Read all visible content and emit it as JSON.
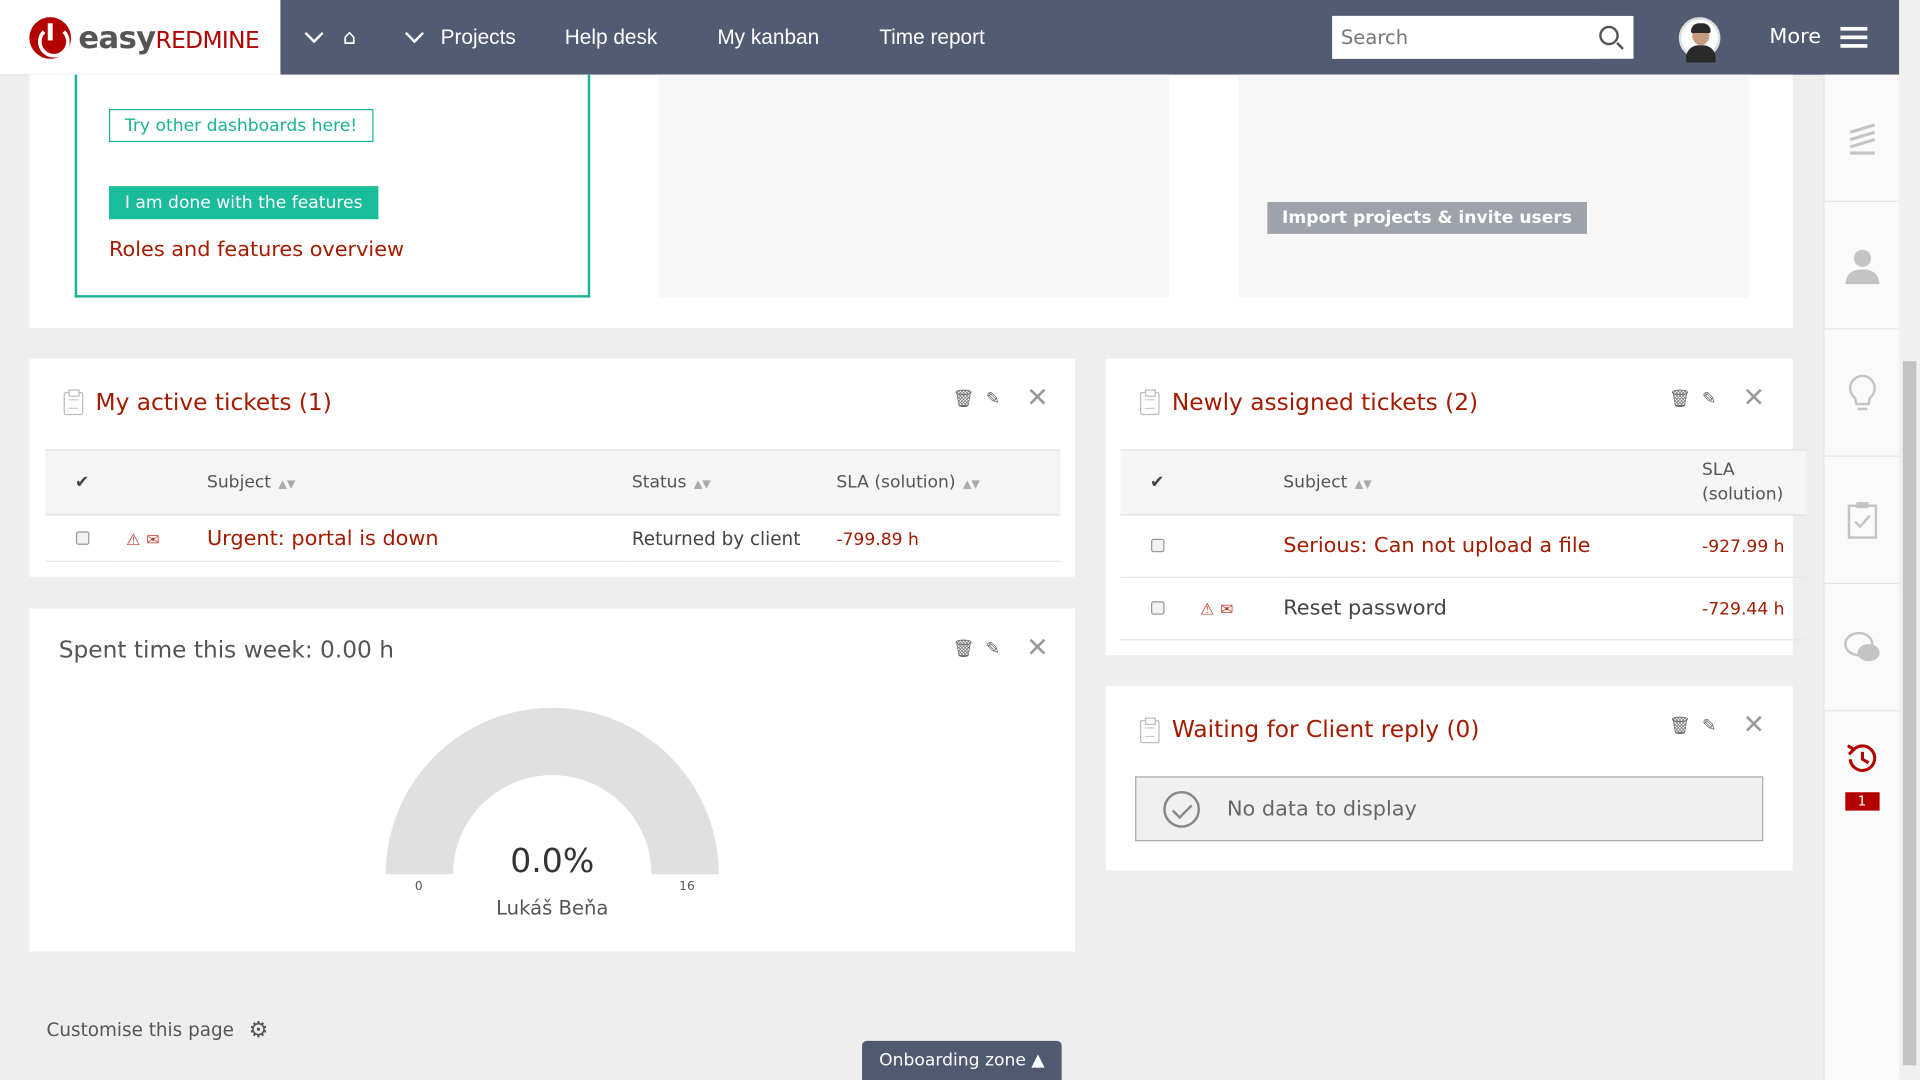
{
  "header": {
    "logo_main": "easy",
    "logo_sub": "REDMINE",
    "nav": [
      "Projects",
      "Help desk",
      "My kanban",
      "Time report"
    ],
    "search_placeholder": "Search",
    "more_label": "More"
  },
  "onboarding": {
    "try_dashboards": "Try other dashboards here!",
    "done_features": "I am done with the features",
    "roles_link": "Roles and features overview",
    "import_button": "Import projects & invite users"
  },
  "my_active_tickets": {
    "title": "My active tickets (1)",
    "columns": [
      "Subject",
      "Status",
      "SLA (solution)"
    ],
    "rows": [
      {
        "subject": "Urgent: portal is down",
        "status": "Returned by client",
        "sla": "-799.89 h"
      }
    ]
  },
  "newly_assigned": {
    "title": "Newly assigned tickets (2)",
    "columns": [
      "Subject",
      "SLA (solution)"
    ],
    "rows": [
      {
        "subject": "Serious: Can not upload a file",
        "sla": "-927.99 h"
      },
      {
        "subject": "Reset password",
        "sla": "-729.44 h"
      }
    ]
  },
  "spent_time": {
    "title": "Spent time this week: 0.00 h",
    "gauge_value": "0.0%",
    "gauge_min": "0",
    "gauge_max": "16",
    "user": "Lukáš Beňa",
    "fraction": 0.0
  },
  "waiting_client": {
    "title": "Waiting for Client reply (0)",
    "no_data": "No data to display"
  },
  "footer": {
    "customise": "Customise this page",
    "onboarding_zone": "Onboarding zone ▲"
  },
  "rail": {
    "badge_count": "1"
  },
  "icons": {
    "trash": "trash-icon",
    "edit": "pencil-icon",
    "close": "close-icon",
    "clipboard": "clipboard-icon"
  },
  "colors": {
    "header_bg": "#515b72",
    "accent_red": "#a31b00",
    "teal": "#1abc9c"
  }
}
